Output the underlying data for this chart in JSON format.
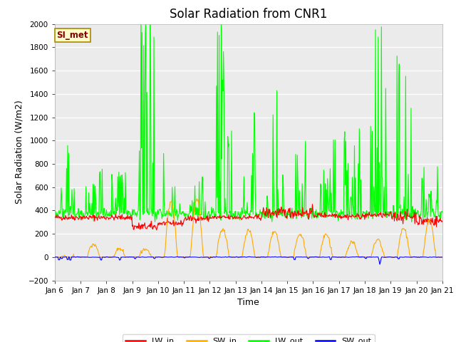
{
  "title": "Solar Radiation from CNR1",
  "xlabel": "Time",
  "ylabel": "Solar Radiation (W/m2)",
  "ylim": [
    -200,
    2000
  ],
  "yticks": [
    -200,
    0,
    200,
    400,
    600,
    800,
    1000,
    1200,
    1400,
    1600,
    1800,
    2000
  ],
  "legend_labels": [
    "LW_in",
    "SW_in",
    "LW_out",
    "SW_out"
  ],
  "legend_colors": [
    "#ff0000",
    "#ffaa00",
    "#00ff00",
    "#0000ff"
  ],
  "label_box_text": "SI_met",
  "label_box_facecolor": "#ffffcc",
  "label_box_edgecolor": "#aa8800",
  "label_box_textcolor": "#880000",
  "plot_bg_color": "#ebebeb",
  "fig_bg_color": "#ffffff",
  "grid_color": "#ffffff",
  "xtick_positions": [
    6,
    7,
    8,
    9,
    10,
    11,
    12,
    13,
    14,
    15,
    16,
    17,
    18,
    19,
    20,
    21
  ],
  "xtick_labels": [
    "Jan 6",
    "Jan 7",
    "Jan 8",
    "Jan 9",
    "Jan 10",
    "Jan 11",
    "Jan 12",
    "Jan 13",
    "Jan 14",
    "Jan 15",
    "Jan 16",
    "Jan 17",
    "Jan 18",
    "Jan 19",
    "Jan 20",
    "Jan 21"
  ],
  "title_fontsize": 12,
  "axis_fontsize": 9,
  "tick_fontsize": 7.5,
  "legend_fontsize": 8,
  "linewidth": 0.8
}
